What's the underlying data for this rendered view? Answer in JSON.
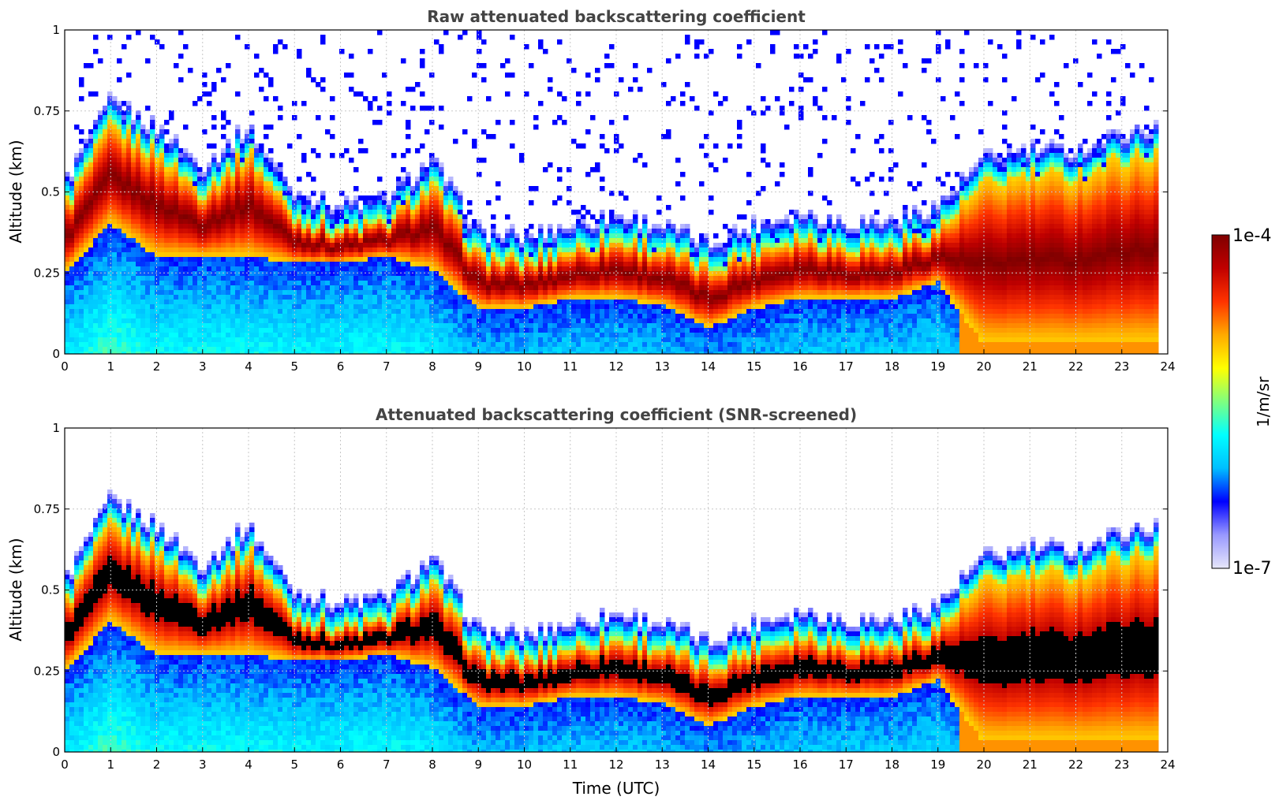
{
  "colors": {
    "colormap": [
      "#e6e6fa",
      "#9999ff",
      "#0000ff",
      "#00bfff",
      "#00ffff",
      "#7fff7f",
      "#ffff00",
      "#ffaa00",
      "#ff3300",
      "#c00000",
      "#7f0000"
    ],
    "below_threshold": "#ffffff",
    "saturated_screened": "#000000",
    "grid": "#c8c8c8"
  },
  "colorbar": {
    "min_label": "1e-7",
    "max_label": "1e-4",
    "unit_label": "1/m/sr",
    "scale": "log"
  },
  "chart_data": [
    {
      "type": "heatmap",
      "title": "Raw attenuated backscattering coefficient",
      "xlabel": "",
      "ylabel": "Altitude (km)",
      "xlim": [
        0,
        24
      ],
      "ylim": [
        0,
        1
      ],
      "xticks": [
        0,
        1,
        2,
        3,
        4,
        5,
        6,
        7,
        8,
        9,
        10,
        11,
        12,
        13,
        14,
        15,
        16,
        17,
        18,
        19,
        20,
        21,
        22,
        23,
        24
      ],
      "yticks": [
        0,
        0.25,
        0.5,
        0.75,
        1
      ],
      "ytick_labels": [
        "0",
        "0.25",
        "0.5",
        "0.75",
        "1"
      ],
      "grid": true,
      "value_range": [
        1e-07,
        0.0001
      ],
      "layer_top_km": [
        [
          0,
          0.45
        ],
        [
          1,
          0.7
        ],
        [
          2,
          0.62
        ],
        [
          3,
          0.5
        ],
        [
          4,
          0.62
        ],
        [
          5,
          0.42
        ],
        [
          6,
          0.38
        ],
        [
          7,
          0.4
        ],
        [
          8,
          0.52
        ],
        [
          9,
          0.3
        ],
        [
          10,
          0.28
        ],
        [
          11,
          0.32
        ],
        [
          12,
          0.35
        ],
        [
          13,
          0.32
        ],
        [
          14,
          0.26
        ],
        [
          15,
          0.32
        ],
        [
          16,
          0.36
        ],
        [
          17,
          0.33
        ],
        [
          18,
          0.33
        ],
        [
          19,
          0.38
        ],
        [
          20,
          0.52
        ],
        [
          21,
          0.55
        ],
        [
          22,
          0.55
        ],
        [
          23,
          0.6
        ],
        [
          23.8,
          0.62
        ]
      ],
      "layer_base_km": [
        [
          0,
          0.25
        ],
        [
          1,
          0.4
        ],
        [
          2,
          0.3
        ],
        [
          3,
          0.3
        ],
        [
          4,
          0.3
        ],
        [
          5,
          0.28
        ],
        [
          6,
          0.28
        ],
        [
          7,
          0.3
        ],
        [
          8,
          0.26
        ],
        [
          9,
          0.14
        ],
        [
          10,
          0.14
        ],
        [
          11,
          0.17
        ],
        [
          12,
          0.17
        ],
        [
          13,
          0.15
        ],
        [
          14,
          0.08
        ],
        [
          15,
          0.14
        ],
        [
          16,
          0.17
        ],
        [
          17,
          0.17
        ],
        [
          18,
          0.17
        ],
        [
          19,
          0.22
        ],
        [
          20,
          0.03
        ],
        [
          21,
          0.03
        ],
        [
          22,
          0.03
        ],
        [
          23,
          0.03
        ],
        [
          23.8,
          0.03
        ]
      ]
    },
    {
      "type": "heatmap",
      "title": "Attenuated backscattering coefficient (SNR-screened)",
      "xlabel": "Time (UTC)",
      "ylabel": "Altitude (km)",
      "xlim": [
        0,
        24
      ],
      "ylim": [
        0,
        1
      ],
      "xticks": [
        0,
        1,
        2,
        3,
        4,
        5,
        6,
        7,
        8,
        9,
        10,
        11,
        12,
        13,
        14,
        15,
        16,
        17,
        18,
        19,
        20,
        21,
        22,
        23,
        24
      ],
      "yticks": [
        0,
        0.25,
        0.5,
        0.75,
        1
      ],
      "ytick_labels": [
        "0",
        "0.25",
        "0.5",
        "0.75",
        "1"
      ],
      "grid": true,
      "value_range": [
        1e-07,
        0.0001
      ],
      "layer_top_km": [
        [
          0,
          0.45
        ],
        [
          1,
          0.7
        ],
        [
          2,
          0.62
        ],
        [
          3,
          0.5
        ],
        [
          4,
          0.62
        ],
        [
          5,
          0.42
        ],
        [
          6,
          0.38
        ],
        [
          7,
          0.4
        ],
        [
          8,
          0.52
        ],
        [
          9,
          0.3
        ],
        [
          10,
          0.28
        ],
        [
          11,
          0.32
        ],
        [
          12,
          0.35
        ],
        [
          13,
          0.32
        ],
        [
          14,
          0.26
        ],
        [
          15,
          0.32
        ],
        [
          16,
          0.36
        ],
        [
          17,
          0.33
        ],
        [
          18,
          0.33
        ],
        [
          19,
          0.38
        ],
        [
          20,
          0.52
        ],
        [
          21,
          0.55
        ],
        [
          22,
          0.55
        ],
        [
          23,
          0.6
        ],
        [
          23.8,
          0.62
        ]
      ],
      "layer_base_km": [
        [
          0,
          0.25
        ],
        [
          1,
          0.4
        ],
        [
          2,
          0.3
        ],
        [
          3,
          0.3
        ],
        [
          4,
          0.3
        ],
        [
          5,
          0.28
        ],
        [
          6,
          0.28
        ],
        [
          7,
          0.3
        ],
        [
          8,
          0.26
        ],
        [
          9,
          0.14
        ],
        [
          10,
          0.14
        ],
        [
          11,
          0.17
        ],
        [
          12,
          0.17
        ],
        [
          13,
          0.15
        ],
        [
          14,
          0.08
        ],
        [
          15,
          0.14
        ],
        [
          16,
          0.17
        ],
        [
          17,
          0.17
        ],
        [
          18,
          0.17
        ],
        [
          19,
          0.22
        ],
        [
          20,
          0.03
        ],
        [
          21,
          0.03
        ],
        [
          22,
          0.03
        ],
        [
          23,
          0.03
        ],
        [
          23.8,
          0.03
        ]
      ]
    }
  ]
}
